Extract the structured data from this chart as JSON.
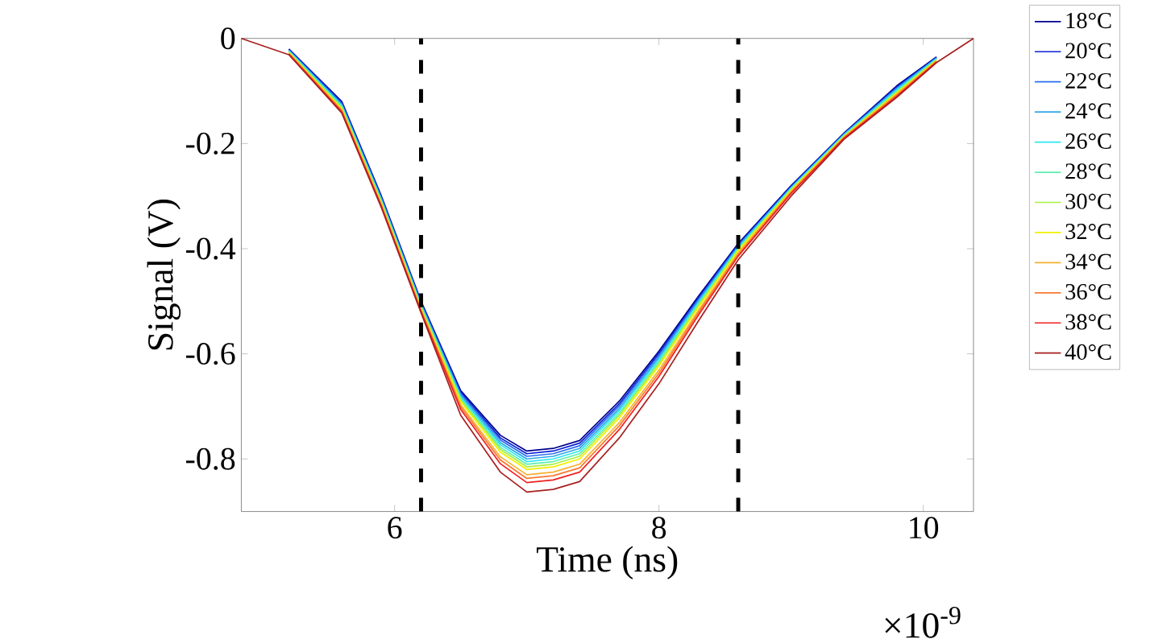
{
  "chart_data": {
    "type": "line",
    "xlabel": "Time (ns)",
    "ylabel": "Signal (V)",
    "annotations": [
      "×10$^{-9}$"
    ],
    "x": [
      4.84,
      5.2,
      5.6,
      5.9,
      6.2,
      6.5,
      6.8,
      7.0,
      7.2,
      7.4,
      7.7,
      8.0,
      8.3,
      8.6,
      9.0,
      9.4,
      9.8,
      10.1,
      10.38
    ],
    "series": [
      {
        "name": "18°C",
        "color": "#00008f",
        "values": [
          null,
          -0.02,
          -0.12,
          -0.3,
          -0.5,
          -0.67,
          -0.755,
          -0.785,
          -0.78,
          -0.765,
          -0.69,
          -0.595,
          -0.49,
          -0.39,
          -0.28,
          -0.18,
          -0.09,
          -0.035,
          null
        ]
      },
      {
        "name": "20°C",
        "color": "#0a1fd4",
        "values": [
          null,
          -0.021,
          -0.122,
          -0.302,
          -0.502,
          -0.673,
          -0.76,
          -0.79,
          -0.785,
          -0.77,
          -0.695,
          -0.599,
          -0.493,
          -0.392,
          -0.281,
          -0.181,
          -0.092,
          -0.036,
          null
        ]
      },
      {
        "name": "22°C",
        "color": "#2a6ff0",
        "values": [
          null,
          -0.022,
          -0.124,
          -0.304,
          -0.504,
          -0.676,
          -0.764,
          -0.795,
          -0.79,
          -0.775,
          -0.699,
          -0.603,
          -0.496,
          -0.394,
          -0.283,
          -0.182,
          -0.094,
          -0.037,
          null
        ]
      },
      {
        "name": "24°C",
        "color": "#2fa8e8",
        "values": [
          null,
          -0.023,
          -0.126,
          -0.306,
          -0.506,
          -0.679,
          -0.769,
          -0.8,
          -0.795,
          -0.78,
          -0.704,
          -0.607,
          -0.499,
          -0.396,
          -0.284,
          -0.183,
          -0.096,
          -0.038,
          null
        ]
      },
      {
        "name": "26°C",
        "color": "#2ee8f0",
        "values": [
          null,
          -0.024,
          -0.128,
          -0.308,
          -0.508,
          -0.682,
          -0.773,
          -0.805,
          -0.8,
          -0.785,
          -0.708,
          -0.611,
          -0.502,
          -0.398,
          -0.285,
          -0.184,
          -0.098,
          -0.039,
          null
        ]
      },
      {
        "name": "28°C",
        "color": "#5ef0b0",
        "values": [
          null,
          -0.025,
          -0.13,
          -0.31,
          -0.51,
          -0.685,
          -0.778,
          -0.81,
          -0.805,
          -0.79,
          -0.713,
          -0.615,
          -0.505,
          -0.4,
          -0.286,
          -0.185,
          -0.1,
          -0.04,
          null
        ]
      },
      {
        "name": "30°C",
        "color": "#a8f040",
        "values": [
          null,
          -0.026,
          -0.132,
          -0.312,
          -0.512,
          -0.688,
          -0.782,
          -0.815,
          -0.81,
          -0.795,
          -0.717,
          -0.619,
          -0.508,
          -0.402,
          -0.288,
          -0.186,
          -0.102,
          -0.041,
          null
        ]
      },
      {
        "name": "32°C",
        "color": "#f0f000",
        "values": [
          null,
          -0.027,
          -0.134,
          -0.314,
          -0.514,
          -0.691,
          -0.787,
          -0.82,
          -0.815,
          -0.8,
          -0.722,
          -0.623,
          -0.511,
          -0.404,
          -0.289,
          -0.187,
          -0.104,
          -0.042,
          null
        ]
      },
      {
        "name": "34°C",
        "color": "#f8b030",
        "values": [
          null,
          -0.028,
          -0.136,
          -0.316,
          -0.516,
          -0.697,
          -0.796,
          -0.83,
          -0.825,
          -0.81,
          -0.731,
          -0.631,
          -0.517,
          -0.408,
          -0.291,
          -0.188,
          -0.106,
          -0.043,
          null
        ]
      },
      {
        "name": "36°C",
        "color": "#f87830",
        "values": [
          null,
          -0.029,
          -0.138,
          -0.318,
          -0.518,
          -0.701,
          -0.802,
          -0.837,
          -0.832,
          -0.817,
          -0.737,
          -0.637,
          -0.521,
          -0.411,
          -0.293,
          -0.189,
          -0.108,
          -0.044,
          null
        ]
      },
      {
        "name": "38°C",
        "color": "#f02020",
        "values": [
          null,
          -0.03,
          -0.14,
          -0.32,
          -0.52,
          -0.706,
          -0.809,
          -0.845,
          -0.84,
          -0.825,
          -0.744,
          -0.643,
          -0.526,
          -0.414,
          -0.295,
          -0.19,
          -0.11,
          -0.045,
          null
        ]
      },
      {
        "name": "40°C",
        "color": "#a82020",
        "values": [
          0,
          -0.031,
          -0.142,
          -0.322,
          -0.522,
          -0.717,
          -0.825,
          -0.863,
          -0.858,
          -0.843,
          -0.76,
          -0.657,
          -0.537,
          -0.421,
          -0.3,
          -0.192,
          -0.112,
          -0.046,
          0
        ]
      }
    ],
    "xlim": [
      4.84,
      10.38
    ],
    "ylim": [
      -0.9,
      0
    ],
    "xticks": [
      6,
      8,
      10
    ],
    "yticks": [
      0,
      -0.2,
      -0.4,
      -0.6,
      -0.8
    ],
    "ref_lines": [
      {
        "axis": "x",
        "value": 6.2,
        "color": "#000000",
        "line_style": "dashed"
      },
      {
        "axis": "x",
        "value": 8.6,
        "color": "#000000",
        "line_style": "dashed"
      }
    ],
    "legend": "right",
    "grid": false
  }
}
